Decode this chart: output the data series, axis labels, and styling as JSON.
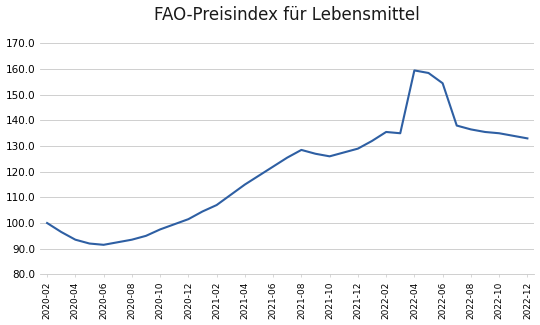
{
  "title": "FAO-Preisindex für Lebensmittel",
  "line_color": "#2E5FA3",
  "background_color": "#ffffff",
  "grid_color": "#c8c8c8",
  "ylim": [
    80,
    175
  ],
  "yticks": [
    80.0,
    90.0,
    100.0,
    110.0,
    120.0,
    130.0,
    140.0,
    150.0,
    160.0,
    170.0
  ],
  "x_labels": [
    "2020-02",
    "2020-04",
    "2020-06",
    "2020-08",
    "2020-10",
    "2020-12",
    "2021-02",
    "2021-04",
    "2021-06",
    "2021-08",
    "2021-10",
    "2021-12",
    "2022-02",
    "2022-04",
    "2022-06",
    "2022-08",
    "2022-10",
    "2022-12"
  ],
  "monthly_values": [
    100.0,
    96.5,
    93.5,
    92.0,
    91.5,
    92.5,
    93.5,
    95.0,
    97.5,
    99.5,
    101.5,
    104.5,
    107.0,
    111.0,
    115.0,
    118.5,
    122.0,
    125.5,
    128.5,
    127.0,
    126.0,
    127.5,
    129.0,
    132.0,
    135.5,
    135.0,
    159.5,
    158.5,
    154.5,
    138.0,
    136.5,
    135.5,
    135.0,
    134.0,
    133.0
  ]
}
